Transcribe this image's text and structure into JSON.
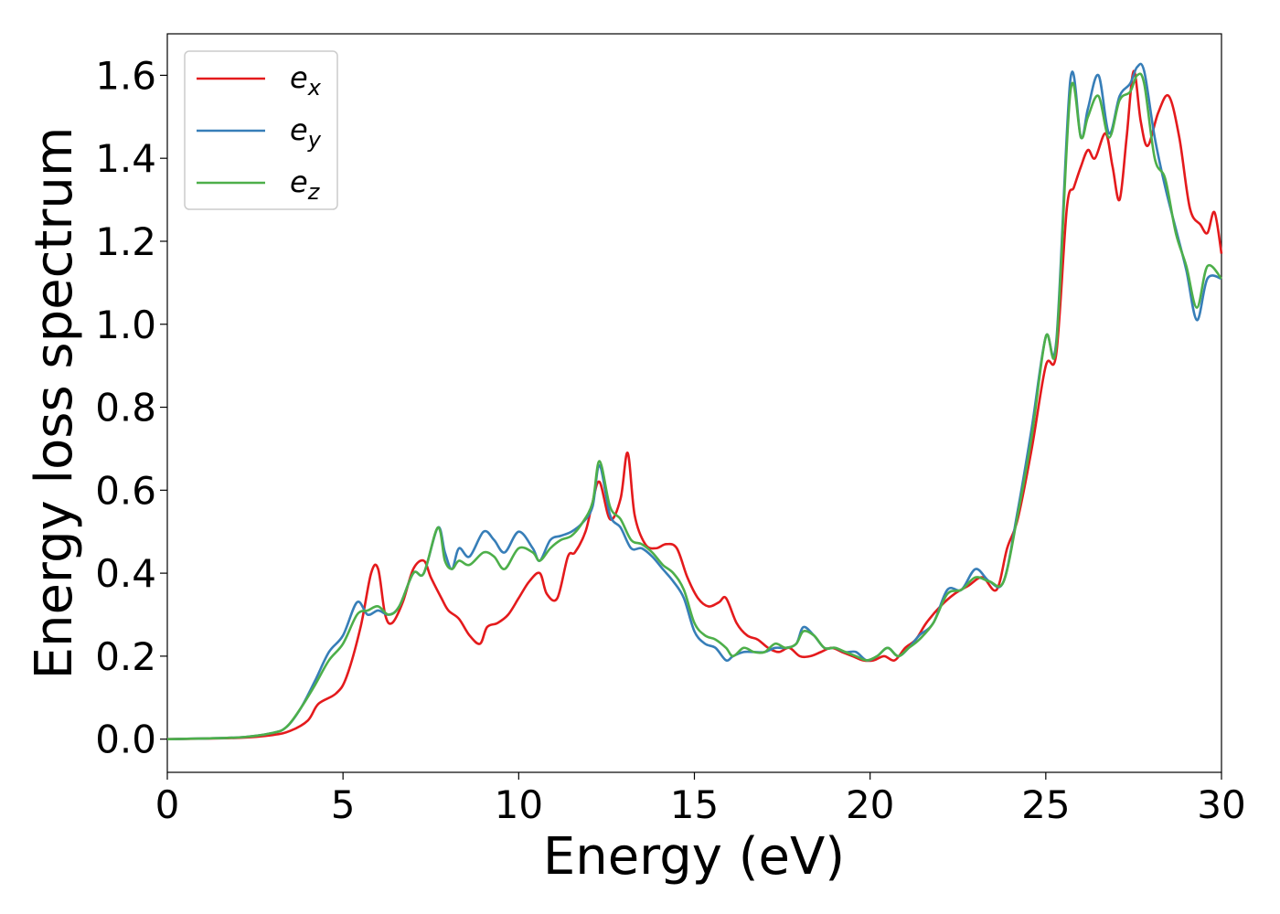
{
  "chart_data": {
    "type": "line",
    "xlabel": "Energy (eV)",
    "ylabel": "Energy loss spectrum",
    "xlim": [
      0,
      30
    ],
    "ylim": [
      -0.08,
      1.7
    ],
    "xticks": [
      0,
      5,
      10,
      15,
      20,
      25,
      30
    ],
    "xtick_labels": [
      "0",
      "5",
      "10",
      "15",
      "20",
      "25",
      "30"
    ],
    "yticks": [
      0.0,
      0.2,
      0.4,
      0.6,
      0.8,
      1.0,
      1.2,
      1.4,
      1.6
    ],
    "ytick_labels": [
      "0.0",
      "0.2",
      "0.4",
      "0.6",
      "0.8",
      "1.0",
      "1.2",
      "1.4",
      "1.6"
    ],
    "grid": false,
    "legend_position": "top-left",
    "series": [
      {
        "name": "e_x",
        "label_base": "e",
        "label_sub": "x",
        "color": "#e41a1c",
        "x": [
          0,
          2,
          3,
          3.5,
          4,
          4.3,
          4.8,
          5.1,
          5.5,
          5.8,
          6.0,
          6.2,
          6.4,
          6.7,
          7.0,
          7.3,
          7.5,
          7.8,
          8.0,
          8.3,
          8.6,
          8.9,
          9.1,
          9.4,
          9.7,
          10.0,
          10.3,
          10.6,
          10.8,
          11.1,
          11.4,
          11.6,
          11.9,
          12.1,
          12.3,
          12.6,
          12.9,
          13.1,
          13.3,
          13.6,
          13.9,
          14.2,
          14.5,
          14.8,
          15.1,
          15.4,
          15.7,
          15.9,
          16.2,
          16.5,
          16.8,
          17.1,
          17.4,
          17.7,
          18.0,
          18.3,
          18.6,
          18.9,
          19.2,
          19.5,
          19.8,
          20.1,
          20.4,
          20.7,
          21.0,
          21.3,
          21.6,
          22.0,
          22.4,
          22.8,
          23.2,
          23.6,
          23.9,
          24.2,
          24.6,
          25.0,
          25.3,
          25.6,
          25.8,
          26.0,
          26.2,
          26.4,
          26.7,
          26.9,
          27.1,
          27.3,
          27.5,
          27.7,
          27.9,
          28.2,
          28.5,
          28.8,
          29.1,
          29.4,
          29.6,
          29.8,
          30.0
        ],
        "values": [
          0.0,
          0.003,
          0.01,
          0.02,
          0.045,
          0.085,
          0.11,
          0.15,
          0.27,
          0.4,
          0.41,
          0.3,
          0.28,
          0.33,
          0.41,
          0.43,
          0.39,
          0.34,
          0.31,
          0.29,
          0.25,
          0.23,
          0.27,
          0.28,
          0.3,
          0.34,
          0.38,
          0.4,
          0.35,
          0.34,
          0.44,
          0.45,
          0.5,
          0.57,
          0.62,
          0.53,
          0.58,
          0.69,
          0.54,
          0.47,
          0.46,
          0.47,
          0.46,
          0.39,
          0.34,
          0.32,
          0.33,
          0.34,
          0.28,
          0.25,
          0.24,
          0.22,
          0.21,
          0.22,
          0.2,
          0.2,
          0.21,
          0.22,
          0.21,
          0.2,
          0.19,
          0.19,
          0.2,
          0.19,
          0.22,
          0.24,
          0.28,
          0.32,
          0.35,
          0.37,
          0.39,
          0.36,
          0.46,
          0.53,
          0.7,
          0.9,
          0.93,
          1.28,
          1.33,
          1.38,
          1.42,
          1.4,
          1.46,
          1.38,
          1.3,
          1.45,
          1.61,
          1.49,
          1.43,
          1.51,
          1.55,
          1.45,
          1.28,
          1.24,
          1.22,
          1.27,
          1.17
        ]
      },
      {
        "name": "e_y",
        "label_base": "e",
        "label_sub": "y",
        "color": "#377eb8",
        "x": [
          0,
          2,
          3,
          3.4,
          3.8,
          4.2,
          4.6,
          5.0,
          5.4,
          5.7,
          6.0,
          6.3,
          6.6,
          7.0,
          7.3,
          7.7,
          7.9,
          8.1,
          8.3,
          8.6,
          9.0,
          9.3,
          9.6,
          10.0,
          10.4,
          10.6,
          10.9,
          11.2,
          11.5,
          11.8,
          12.1,
          12.3,
          12.6,
          12.9,
          13.2,
          13.5,
          13.8,
          14.1,
          14.4,
          14.7,
          15.0,
          15.3,
          15.6,
          15.9,
          16.1,
          16.4,
          16.7,
          17.0,
          17.3,
          17.6,
          17.9,
          18.1,
          18.4,
          18.7,
          19.0,
          19.3,
          19.6,
          19.9,
          20.2,
          20.5,
          20.8,
          21.1,
          21.4,
          21.8,
          22.2,
          22.6,
          23.0,
          23.4,
          23.8,
          24.2,
          24.6,
          25.0,
          25.3,
          25.7,
          26.0,
          26.2,
          26.5,
          26.8,
          27.1,
          27.4,
          27.6,
          27.8,
          28.1,
          28.4,
          28.7,
          29.0,
          29.3,
          29.6,
          30.0
        ],
        "values": [
          0.0,
          0.004,
          0.015,
          0.03,
          0.075,
          0.14,
          0.21,
          0.25,
          0.33,
          0.3,
          0.31,
          0.3,
          0.32,
          0.4,
          0.4,
          0.51,
          0.45,
          0.41,
          0.46,
          0.44,
          0.5,
          0.48,
          0.45,
          0.5,
          0.46,
          0.43,
          0.48,
          0.49,
          0.5,
          0.52,
          0.56,
          0.66,
          0.54,
          0.51,
          0.46,
          0.46,
          0.44,
          0.41,
          0.38,
          0.34,
          0.26,
          0.23,
          0.22,
          0.19,
          0.2,
          0.21,
          0.21,
          0.21,
          0.22,
          0.22,
          0.23,
          0.27,
          0.25,
          0.22,
          0.22,
          0.21,
          0.21,
          0.19,
          0.2,
          0.22,
          0.2,
          0.22,
          0.25,
          0.28,
          0.36,
          0.36,
          0.41,
          0.38,
          0.38,
          0.55,
          0.75,
          0.97,
          0.96,
          1.59,
          1.45,
          1.52,
          1.6,
          1.46,
          1.55,
          1.58,
          1.62,
          1.61,
          1.45,
          1.33,
          1.23,
          1.13,
          1.01,
          1.11,
          1.11
        ]
      },
      {
        "name": "e_z",
        "label_base": "e",
        "label_sub": "z",
        "color": "#4daf4a",
        "x": [
          0,
          2,
          3,
          3.4,
          3.8,
          4.2,
          4.6,
          5.0,
          5.4,
          5.7,
          6.0,
          6.3,
          6.6,
          7.0,
          7.3,
          7.7,
          7.9,
          8.1,
          8.3,
          8.6,
          9.0,
          9.3,
          9.6,
          10.0,
          10.4,
          10.6,
          10.9,
          11.2,
          11.5,
          11.8,
          12.1,
          12.3,
          12.6,
          12.9,
          13.2,
          13.5,
          13.8,
          14.1,
          14.4,
          14.7,
          15.0,
          15.3,
          15.6,
          15.9,
          16.1,
          16.4,
          16.7,
          17.0,
          17.3,
          17.6,
          17.9,
          18.1,
          18.4,
          18.7,
          19.0,
          19.3,
          19.6,
          19.9,
          20.2,
          20.5,
          20.8,
          21.1,
          21.4,
          21.8,
          22.2,
          22.6,
          23.0,
          23.4,
          23.8,
          24.2,
          24.6,
          25.0,
          25.3,
          25.7,
          26.0,
          26.2,
          26.5,
          26.8,
          27.1,
          27.4,
          27.6,
          27.8,
          28.1,
          28.4,
          28.7,
          29.0,
          29.3,
          29.6,
          30.0
        ],
        "values": [
          0.0,
          0.004,
          0.015,
          0.03,
          0.075,
          0.13,
          0.19,
          0.23,
          0.3,
          0.31,
          0.32,
          0.3,
          0.32,
          0.4,
          0.4,
          0.51,
          0.43,
          0.41,
          0.43,
          0.42,
          0.45,
          0.44,
          0.41,
          0.46,
          0.45,
          0.43,
          0.46,
          0.48,
          0.49,
          0.52,
          0.57,
          0.67,
          0.56,
          0.53,
          0.48,
          0.47,
          0.45,
          0.42,
          0.4,
          0.36,
          0.28,
          0.25,
          0.24,
          0.22,
          0.2,
          0.22,
          0.21,
          0.21,
          0.23,
          0.22,
          0.23,
          0.26,
          0.25,
          0.22,
          0.22,
          0.21,
          0.2,
          0.19,
          0.2,
          0.22,
          0.2,
          0.22,
          0.24,
          0.28,
          0.35,
          0.36,
          0.39,
          0.38,
          0.38,
          0.54,
          0.73,
          0.97,
          0.95,
          1.56,
          1.45,
          1.5,
          1.55,
          1.45,
          1.54,
          1.56,
          1.6,
          1.58,
          1.4,
          1.35,
          1.22,
          1.14,
          1.04,
          1.14,
          1.11
        ]
      }
    ]
  }
}
